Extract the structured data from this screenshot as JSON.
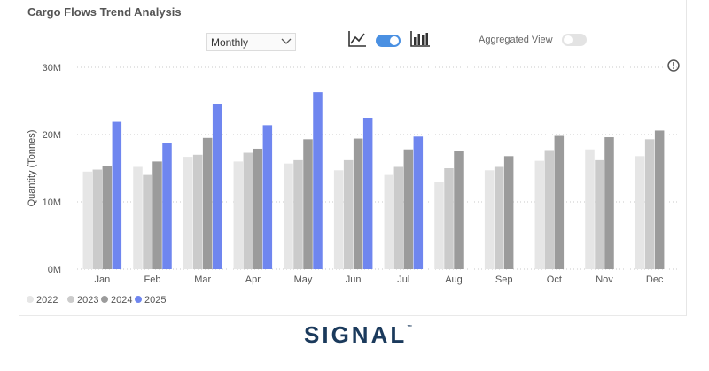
{
  "title": "Cargo Flows Trend Analysis",
  "dropdown": {
    "selected": "Monthly"
  },
  "toolbar": {
    "icons": [
      "line-chart-icon",
      "toggle",
      "bar-chart-icon"
    ],
    "chart_toggle_on": true,
    "aggregated_label": "Aggregated View",
    "aggregated_on": false
  },
  "brand": {
    "name": "SIGNAL",
    "mark": "™"
  },
  "colors": {
    "accent": "#4a90e2",
    "brand": "#1b3a5c",
    "s2022": "#e6e6e6",
    "s2023": "#cbcbcb",
    "s2024": "#9b9b9b",
    "s2025": "#6f86ef"
  },
  "chart_data": {
    "type": "bar",
    "title": "Cargo Flows Trend Analysis",
    "ylabel": "Quantity (Tonnes)",
    "xlabel": "",
    "ylim": [
      0,
      30000000
    ],
    "yticks": [
      {
        "value": 0,
        "label": "0M"
      },
      {
        "value": 10000000,
        "label": "10M"
      },
      {
        "value": 20000000,
        "label": "20M"
      },
      {
        "value": 30000000,
        "label": "30M"
      }
    ],
    "grid": true,
    "legend": "bottom-left",
    "categories": [
      "Jan",
      "Feb",
      "Mar",
      "Apr",
      "May",
      "Jun",
      "Jul",
      "Aug",
      "Sep",
      "Oct",
      "Nov",
      "Dec"
    ],
    "series": [
      {
        "name": "2022",
        "color": "#e6e6e6",
        "values": [
          14500000,
          15200000,
          16700000,
          16000000,
          15700000,
          14700000,
          14000000,
          12900000,
          14700000,
          16100000,
          17800000,
          16800000
        ]
      },
      {
        "name": "2023",
        "color": "#cbcbcb",
        "values": [
          14800000,
          14000000,
          17000000,
          17300000,
          16200000,
          16200000,
          15200000,
          15000000,
          15200000,
          17700000,
          16200000,
          19300000
        ]
      },
      {
        "name": "2024",
        "color": "#9b9b9b",
        "values": [
          15300000,
          16000000,
          19500000,
          17900000,
          19300000,
          19400000,
          17800000,
          17600000,
          16800000,
          19800000,
          19600000,
          20600000
        ]
      },
      {
        "name": "2025",
        "color": "#6f86ef",
        "values": [
          21900000,
          18700000,
          24600000,
          21400000,
          26300000,
          22500000,
          19700000,
          null,
          null,
          null,
          null,
          null
        ]
      }
    ]
  }
}
